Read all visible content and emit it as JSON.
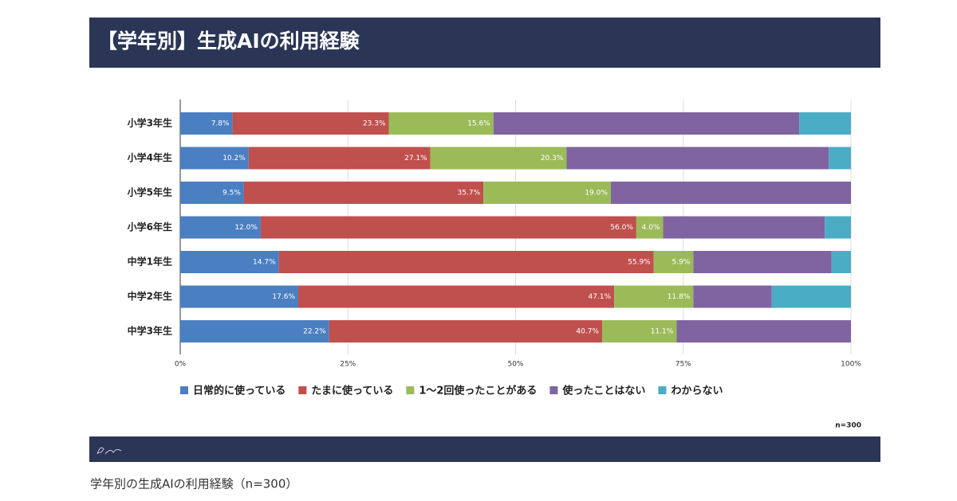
{
  "caption": "学年別の生成AIの利用経験（n=300）",
  "chart_data": {
    "type": "stacked-barh",
    "title": "【学年別】生成AIの利用経験",
    "annotation": "n=300",
    "categories": [
      "小学3年生",
      "小学4年生",
      "小学5年生",
      "小学6年生",
      "中学1年生",
      "中学2年生",
      "中学3年生"
    ],
    "series": [
      {
        "name": "日常的に使っている",
        "color": "#4a7fc1",
        "values": [
          7.8,
          10.2,
          9.5,
          12.0,
          14.7,
          17.6,
          22.2
        ],
        "value_labels": [
          "7.8%",
          "10.2%",
          "9.5%",
          "12.0%",
          "14.7%",
          "17.6%",
          "22.2%"
        ]
      },
      {
        "name": "たまに使っている",
        "color": "#c0504d",
        "values": [
          23.3,
          27.1,
          35.7,
          56.0,
          55.9,
          47.1,
          40.7
        ],
        "value_labels": [
          "23.3%",
          "27.1%",
          "35.7%",
          "56.0%",
          "55.9%",
          "47.1%",
          "40.7%"
        ]
      },
      {
        "name": "1～2回使ったことがある",
        "color": "#9bbb59",
        "values": [
          15.6,
          20.3,
          19.0,
          4.0,
          5.9,
          11.8,
          11.1
        ],
        "value_labels": [
          "15.6%",
          "20.3%",
          "19.0%",
          "4.0%",
          "5.9%",
          "11.8%",
          "11.1%"
        ]
      },
      {
        "name": "使ったことはない",
        "color": "#8064a2",
        "values": [
          45.6,
          39.1,
          35.8,
          24.1,
          20.6,
          11.7,
          26.0
        ]
      },
      {
        "name": "わからない",
        "color": "#4bacc6",
        "values": [
          7.7,
          3.3,
          0,
          3.9,
          2.9,
          11.8,
          0
        ]
      }
    ],
    "xlim": [
      0,
      100
    ],
    "xticks": [
      {
        "value": 0,
        "label": "0%"
      },
      {
        "value": 25,
        "label": "25%"
      },
      {
        "value": 50,
        "label": "50%"
      },
      {
        "value": 75,
        "label": "75%"
      },
      {
        "value": 100,
        "label": "100%"
      }
    ],
    "grid": true
  }
}
